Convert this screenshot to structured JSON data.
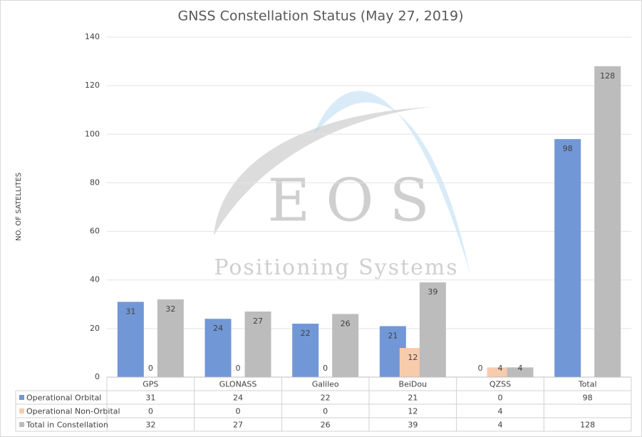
{
  "chart_data": {
    "type": "bar",
    "title": "GNSS Constellation Status (May 27, 2019)",
    "y_label": "NO. OF SATELLITES",
    "watermark": {
      "logo": "EOS",
      "text": "Positioning Systems"
    },
    "categories": [
      "GPS",
      "GLONASS",
      "Galileo",
      "BeiDou",
      "QZSS",
      "Total"
    ],
    "series": [
      {
        "name": "Operational Orbital",
        "color": "#7297d6",
        "values": [
          31,
          24,
          22,
          21,
          0,
          98
        ]
      },
      {
        "name": "Operational Non-Orbital",
        "color": "#f8cbad",
        "values": [
          0,
          0,
          0,
          12,
          4,
          null
        ]
      },
      {
        "name": "Total in Constellation",
        "color": "#bcbcbc",
        "values": [
          32,
          27,
          26,
          39,
          4,
          128
        ]
      }
    ],
    "ylim": [
      0,
      140
    ],
    "yticks": [
      0,
      20,
      40,
      60,
      80,
      100,
      120,
      140
    ],
    "grid": true
  }
}
